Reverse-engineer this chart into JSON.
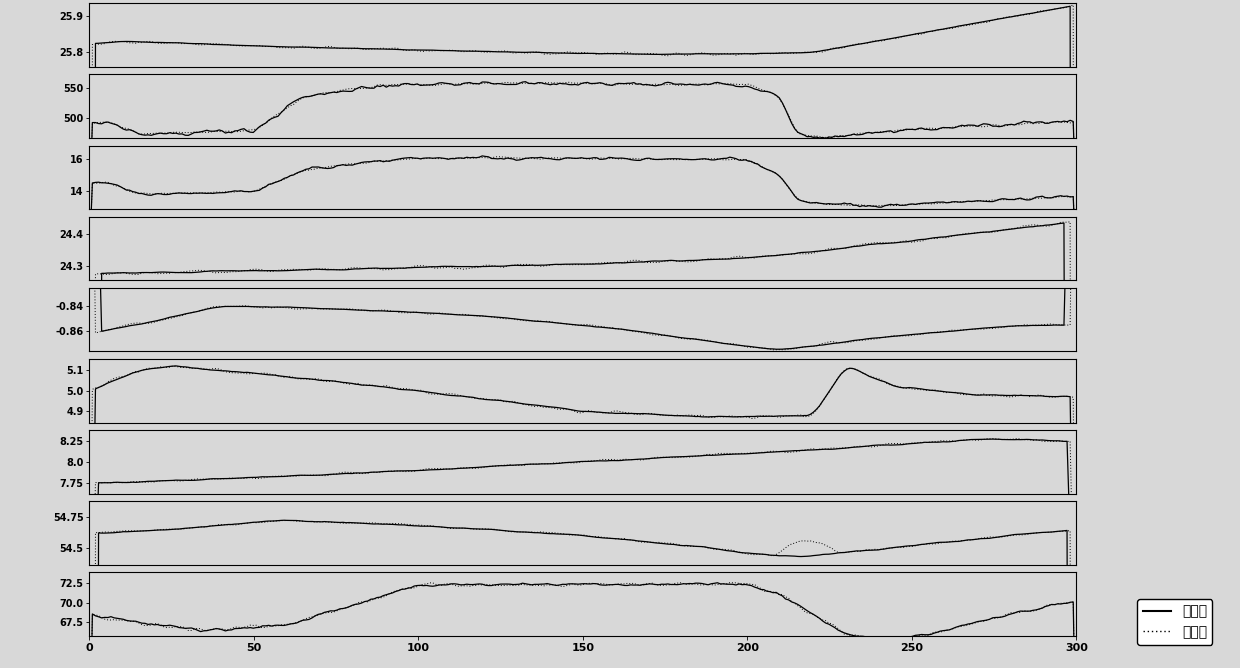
{
  "n_points": 320,
  "subplots": [
    {
      "yticks": [
        25.8,
        25.9
      ],
      "ylim": [
        25.76,
        25.935
      ]
    },
    {
      "yticks": [
        500,
        550
      ],
      "ylim": [
        468,
        572
      ]
    },
    {
      "yticks": [
        14,
        16
      ],
      "ylim": [
        12.9,
        16.85
      ]
    },
    {
      "yticks": [
        24.3,
        24.4
      ],
      "ylim": [
        24.255,
        24.455
      ]
    },
    {
      "yticks": [
        -0.86,
        -0.84
      ],
      "ylim": [
        -0.876,
        -0.826
      ]
    },
    {
      "yticks": [
        4.9,
        5.0,
        5.1
      ],
      "ylim": [
        4.845,
        5.155
      ]
    },
    {
      "yticks": [
        7.75,
        8.0,
        8.25
      ],
      "ylim": [
        7.62,
        8.38
      ]
    },
    {
      "yticks": [
        54.5,
        54.75
      ],
      "ylim": [
        54.37,
        54.87
      ]
    },
    {
      "yticks": [
        67.5,
        70.0,
        72.5
      ],
      "ylim": [
        65.8,
        73.8
      ]
    }
  ],
  "xlabel_ticks": [
    0,
    50,
    100,
    150,
    200,
    250,
    300
  ],
  "legend_labels": [
    "实际値",
    "预估値"
  ],
  "background": "#e8e8e8"
}
